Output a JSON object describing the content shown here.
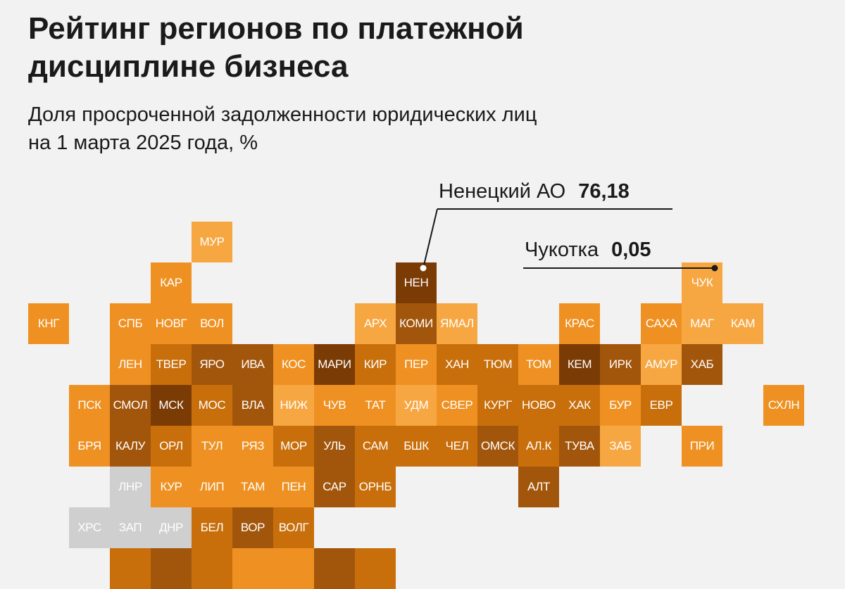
{
  "title_lines": [
    "Рейтинг регионов по платежной",
    "дисциплине бизнеса"
  ],
  "subtitle_lines": [
    "Доля просроченной задолженности юридических лиц",
    "на 1 марта 2025 года, %"
  ],
  "callouts": [
    {
      "label": "Ненецкий АО",
      "value": "76,18",
      "region": "НЕН"
    },
    {
      "label": "Чукотка",
      "value": "0,05",
      "region": "ЧУК"
    }
  ],
  "colors": {
    "background": "#f2f2f2",
    "light": "#f7a742",
    "mid": "#ef9122",
    "dark": "#c86f0c",
    "darker": "#a2560c",
    "darkest": "#7a3b05",
    "no_data": "#cfcfcf"
  },
  "tiles": [
    {
      "label": "МУР",
      "col": 4,
      "row": 0,
      "shade": "light"
    },
    {
      "label": "КАР",
      "col": 3,
      "row": 1,
      "shade": "mid"
    },
    {
      "label": "НЕН",
      "col": 9,
      "row": 1,
      "shade": "darkest"
    },
    {
      "label": "ЧУК",
      "col": 16,
      "row": 1,
      "shade": "light"
    },
    {
      "label": "КНГ",
      "col": 0,
      "row": 2,
      "shade": "mid"
    },
    {
      "label": "СПБ",
      "col": 2,
      "row": 2,
      "shade": "mid"
    },
    {
      "label": "НОВГ",
      "col": 3,
      "row": 2,
      "shade": "mid"
    },
    {
      "label": "ВОЛ",
      "col": 4,
      "row": 2,
      "shade": "mid"
    },
    {
      "label": "АРХ",
      "col": 8,
      "row": 2,
      "shade": "light"
    },
    {
      "label": "КОМИ",
      "col": 9,
      "row": 2,
      "shade": "darker"
    },
    {
      "label": "ЯМАЛ",
      "col": 10,
      "row": 2,
      "shade": "light"
    },
    {
      "label": "КРАС",
      "col": 13,
      "row": 2,
      "shade": "mid"
    },
    {
      "label": "САХА",
      "col": 15,
      "row": 2,
      "shade": "mid"
    },
    {
      "label": "МАГ",
      "col": 16,
      "row": 2,
      "shade": "light"
    },
    {
      "label": "КАМ",
      "col": 17,
      "row": 2,
      "shade": "light"
    },
    {
      "label": "ЛЕН",
      "col": 2,
      "row": 3,
      "shade": "mid"
    },
    {
      "label": "ТВЕР",
      "col": 3,
      "row": 3,
      "shade": "dark"
    },
    {
      "label": "ЯРО",
      "col": 4,
      "row": 3,
      "shade": "darker"
    },
    {
      "label": "ИВА",
      "col": 5,
      "row": 3,
      "shade": "darker"
    },
    {
      "label": "КОС",
      "col": 6,
      "row": 3,
      "shade": "mid"
    },
    {
      "label": "МАРИ",
      "col": 7,
      "row": 3,
      "shade": "darkest"
    },
    {
      "label": "КИР",
      "col": 8,
      "row": 3,
      "shade": "dark"
    },
    {
      "label": "ПЕР",
      "col": 9,
      "row": 3,
      "shade": "mid"
    },
    {
      "label": "ХАН",
      "col": 10,
      "row": 3,
      "shade": "dark"
    },
    {
      "label": "ТЮМ",
      "col": 11,
      "row": 3,
      "shade": "dark"
    },
    {
      "label": "ТОМ",
      "col": 12,
      "row": 3,
      "shade": "mid"
    },
    {
      "label": "КЕМ",
      "col": 13,
      "row": 3,
      "shade": "darkest"
    },
    {
      "label": "ИРК",
      "col": 14,
      "row": 3,
      "shade": "darker"
    },
    {
      "label": "АМУР",
      "col": 15,
      "row": 3,
      "shade": "light"
    },
    {
      "label": "ХАБ",
      "col": 16,
      "row": 3,
      "shade": "darker"
    },
    {
      "label": "ПСК",
      "col": 1,
      "row": 4,
      "shade": "mid"
    },
    {
      "label": "СМОЛ",
      "col": 2,
      "row": 4,
      "shade": "darker"
    },
    {
      "label": "МСК",
      "col": 3,
      "row": 4,
      "shade": "darkest"
    },
    {
      "label": "МОС",
      "col": 4,
      "row": 4,
      "shade": "dark"
    },
    {
      "label": "ВЛА",
      "col": 5,
      "row": 4,
      "shade": "darker"
    },
    {
      "label": "НИЖ",
      "col": 6,
      "row": 4,
      "shade": "light"
    },
    {
      "label": "ЧУВ",
      "col": 7,
      "row": 4,
      "shade": "mid"
    },
    {
      "label": "ТАТ",
      "col": 8,
      "row": 4,
      "shade": "mid"
    },
    {
      "label": "УДМ",
      "col": 9,
      "row": 4,
      "shade": "light"
    },
    {
      "label": "СВЕР",
      "col": 10,
      "row": 4,
      "shade": "mid"
    },
    {
      "label": "КУРГ",
      "col": 11,
      "row": 4,
      "shade": "dark"
    },
    {
      "label": "НОВО",
      "col": 12,
      "row": 4,
      "shade": "dark"
    },
    {
      "label": "ХАК",
      "col": 13,
      "row": 4,
      "shade": "dark"
    },
    {
      "label": "БУР",
      "col": 14,
      "row": 4,
      "shade": "mid"
    },
    {
      "label": "ЕВР",
      "col": 15,
      "row": 4,
      "shade": "dark"
    },
    {
      "label": "СХЛН",
      "col": 18,
      "row": 4,
      "shade": "mid"
    },
    {
      "label": "БРЯ",
      "col": 1,
      "row": 5,
      "shade": "mid"
    },
    {
      "label": "КАЛУ",
      "col": 2,
      "row": 5,
      "shade": "darker"
    },
    {
      "label": "ОРЛ",
      "col": 3,
      "row": 5,
      "shade": "dark"
    },
    {
      "label": "ТУЛ",
      "col": 4,
      "row": 5,
      "shade": "mid"
    },
    {
      "label": "РЯЗ",
      "col": 5,
      "row": 5,
      "shade": "mid"
    },
    {
      "label": "МОР",
      "col": 6,
      "row": 5,
      "shade": "dark"
    },
    {
      "label": "УЛЬ",
      "col": 7,
      "row": 5,
      "shade": "darker"
    },
    {
      "label": "САМ",
      "col": 8,
      "row": 5,
      "shade": "dark"
    },
    {
      "label": "БШК",
      "col": 9,
      "row": 5,
      "shade": "dark"
    },
    {
      "label": "ЧЕЛ",
      "col": 10,
      "row": 5,
      "shade": "dark"
    },
    {
      "label": "ОМСК",
      "col": 11,
      "row": 5,
      "shade": "darker"
    },
    {
      "label": "АЛ.К",
      "col": 12,
      "row": 5,
      "shade": "dark"
    },
    {
      "label": "ТУВА",
      "col": 13,
      "row": 5,
      "shade": "darker"
    },
    {
      "label": "ЗАБ",
      "col": 14,
      "row": 5,
      "shade": "light"
    },
    {
      "label": "ПРИ",
      "col": 16,
      "row": 5,
      "shade": "mid"
    },
    {
      "label": "ЛНР",
      "col": 2,
      "row": 6,
      "shade": "no_data"
    },
    {
      "label": "КУР",
      "col": 3,
      "row": 6,
      "shade": "mid"
    },
    {
      "label": "ЛИП",
      "col": 4,
      "row": 6,
      "shade": "mid"
    },
    {
      "label": "ТАМ",
      "col": 5,
      "row": 6,
      "shade": "mid"
    },
    {
      "label": "ПЕН",
      "col": 6,
      "row": 6,
      "shade": "mid"
    },
    {
      "label": "САР",
      "col": 7,
      "row": 6,
      "shade": "darker"
    },
    {
      "label": "ОРНБ",
      "col": 8,
      "row": 6,
      "shade": "dark"
    },
    {
      "label": "АЛТ",
      "col": 12,
      "row": 6,
      "shade": "darker"
    },
    {
      "label": "ХРС",
      "col": 1,
      "row": 7,
      "shade": "no_data"
    },
    {
      "label": "ЗАП",
      "col": 2,
      "row": 7,
      "shade": "no_data"
    },
    {
      "label": "ДНР",
      "col": 3,
      "row": 7,
      "shade": "no_data"
    },
    {
      "label": "БЕЛ",
      "col": 4,
      "row": 7,
      "shade": "dark"
    },
    {
      "label": "ВОР",
      "col": 5,
      "row": 7,
      "shade": "darker"
    },
    {
      "label": "ВОЛГ",
      "col": 6,
      "row": 7,
      "shade": "dark"
    },
    {
      "label": "",
      "col": 2,
      "row": 8,
      "shade": "dark"
    },
    {
      "label": "",
      "col": 3,
      "row": 8,
      "shade": "darker"
    },
    {
      "label": "",
      "col": 4,
      "row": 8,
      "shade": "dark"
    },
    {
      "label": "",
      "col": 5,
      "row": 8,
      "shade": "mid"
    },
    {
      "label": "",
      "col": 6,
      "row": 8,
      "shade": "mid"
    },
    {
      "label": "",
      "col": 7,
      "row": 8,
      "shade": "darker"
    },
    {
      "label": "",
      "col": 8,
      "row": 8,
      "shade": "dark"
    }
  ]
}
